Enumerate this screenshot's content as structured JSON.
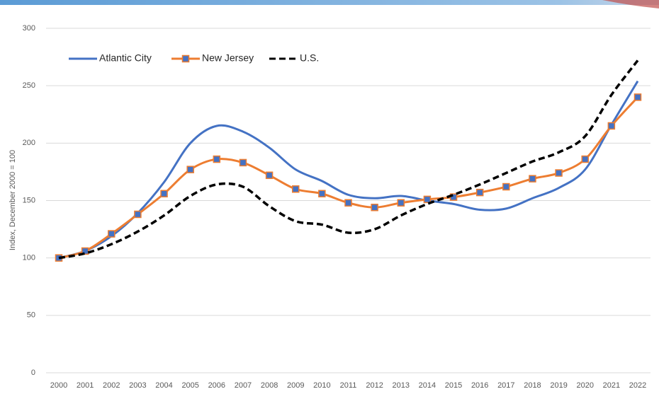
{
  "chart_data": {
    "type": "line",
    "y_label": "Index, December 2000 = 100",
    "categories": [
      "2000",
      "2001",
      "2002",
      "2003",
      "2004",
      "2005",
      "2006",
      "2007",
      "2008",
      "2009",
      "2010",
      "2011",
      "2012",
      "2013",
      "2014",
      "2015",
      "2016",
      "2017",
      "2018",
      "2019",
      "2020",
      "2021",
      "2022"
    ],
    "series": [
      {
        "name": "Atlantic City",
        "color": "#4472c4",
        "line_style": "solid",
        "marker": null,
        "values": [
          100,
          106,
          119,
          139,
          166,
          200,
          215,
          210,
          196,
          177,
          167,
          155,
          152,
          154,
          150,
          147,
          142,
          143,
          152,
          161,
          177,
          216,
          254
        ]
      },
      {
        "name": "New Jersey",
        "color": "#ed7d31",
        "line_style": "solid",
        "marker": "square",
        "marker_color": "#4472c4",
        "values": [
          100,
          106,
          121,
          138,
          156,
          177,
          186,
          183,
          172,
          160,
          156,
          148,
          144,
          148,
          151,
          153,
          157,
          162,
          169,
          174,
          186,
          215,
          240
        ]
      },
      {
        "name": "U.S.",
        "color": "#000000",
        "line_style": "dashed",
        "marker": null,
        "values": [
          100,
          104,
          112,
          123,
          137,
          154,
          164,
          162,
          145,
          132,
          129,
          122,
          125,
          137,
          147,
          155,
          164,
          174,
          184,
          192,
          206,
          242,
          272
        ]
      }
    ],
    "ylim": [
      0,
      300
    ],
    "yticks": [
      0,
      50,
      100,
      150,
      200,
      250,
      300
    ],
    "grid": true,
    "smooth": true
  }
}
